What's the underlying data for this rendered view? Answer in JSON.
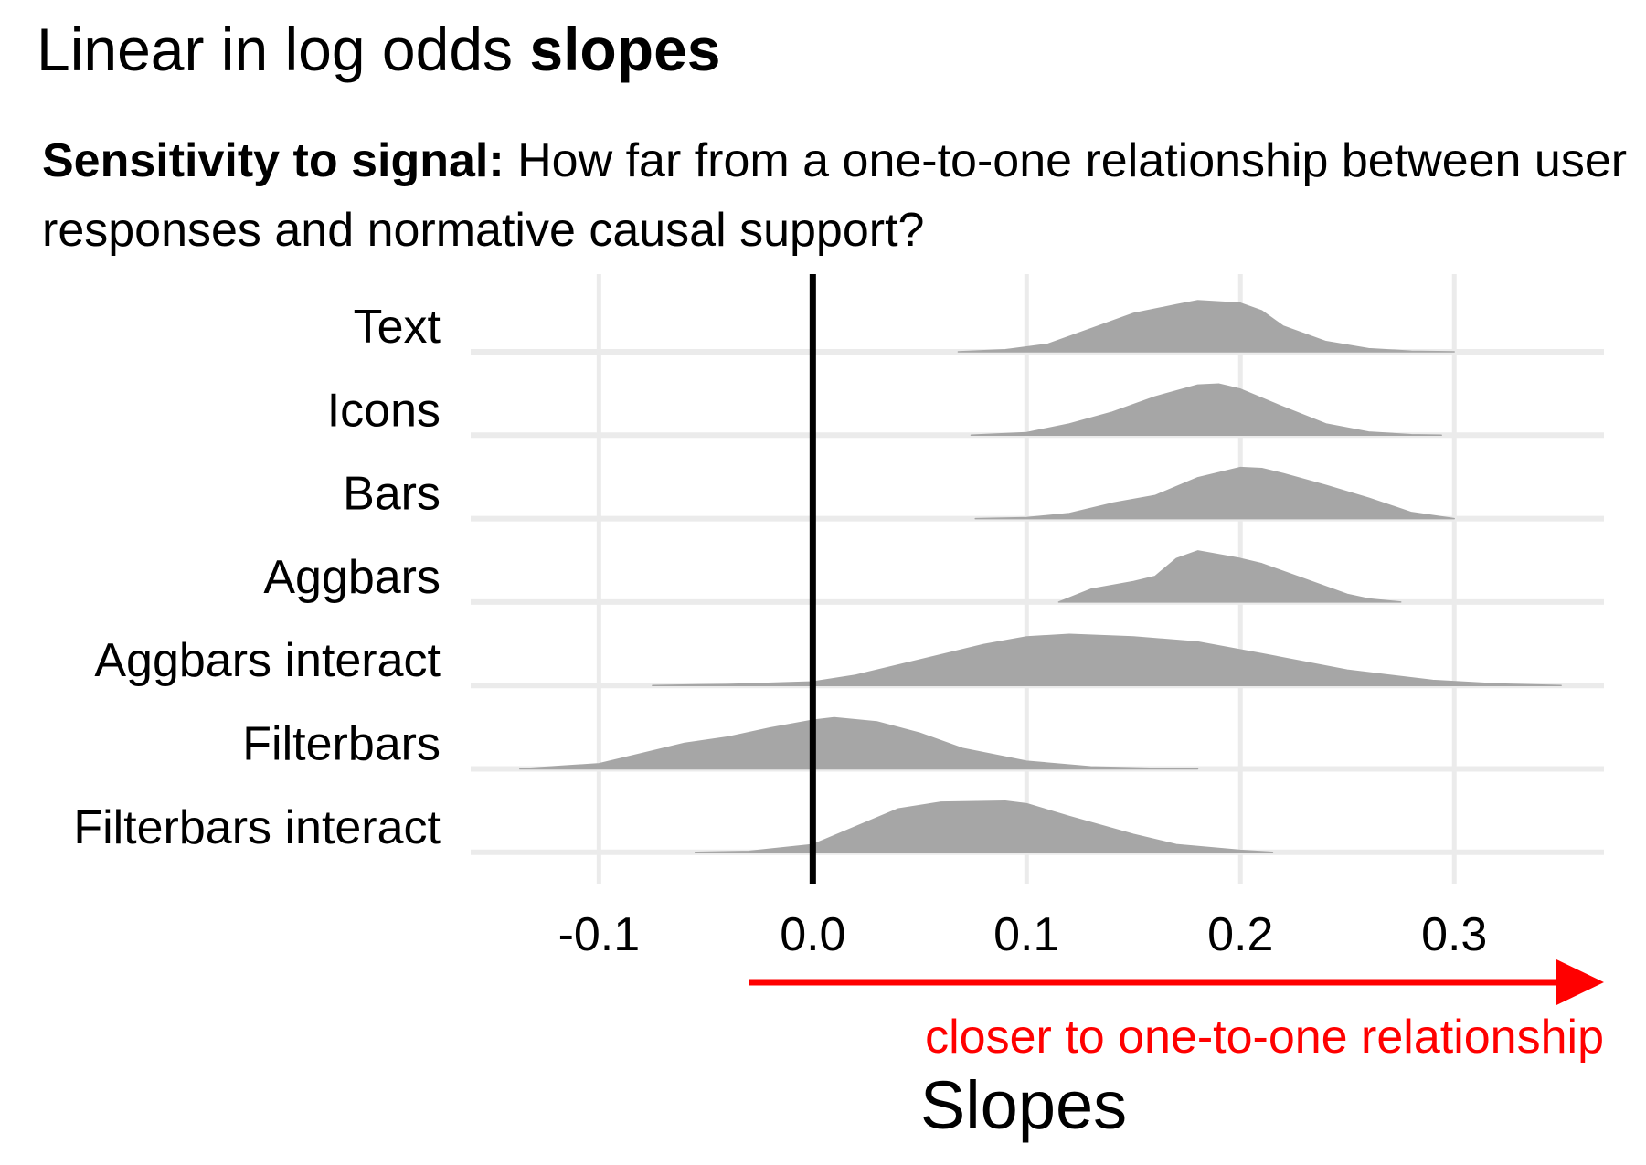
{
  "title": {
    "prefix": "Linear in log odds ",
    "bold": "slopes"
  },
  "subtitle": {
    "bold": "Sensitivity to signal:",
    "text": " How far from a one-to-one relationship between user responses and normative causal support?"
  },
  "chart_data": {
    "type": "density-ridgeline",
    "xlabel": "Slopes",
    "xlim": [
      -0.16,
      0.37
    ],
    "x_ticks": [
      -0.1,
      0.0,
      0.1,
      0.2,
      0.3
    ],
    "x_tick_labels": [
      "-0.1",
      "0.0",
      "0.1",
      "0.2",
      "0.3"
    ],
    "reference_line_x": 0.0,
    "annotation": {
      "text": "closer to one-to-one relationship",
      "color": "#ff0000",
      "arrow_from_x": -0.03,
      "arrow_to_x": 0.37
    },
    "fill_color": "#a6a6a6",
    "grid": true,
    "categories": [
      "Text",
      "Icons",
      "Bars",
      "Aggbars",
      "Aggbars interact",
      "Filterbars",
      "Filterbars interact"
    ],
    "series": [
      {
        "name": "Text",
        "x": [
          0.068,
          0.09,
          0.11,
          0.13,
          0.15,
          0.17,
          0.18,
          0.2,
          0.21,
          0.22,
          0.24,
          0.26,
          0.28,
          0.3
        ],
        "density": [
          0.0,
          0.04,
          0.15,
          0.45,
          0.75,
          0.92,
          1.0,
          0.95,
          0.8,
          0.5,
          0.2,
          0.06,
          0.01,
          0.0
        ]
      },
      {
        "name": "Icons",
        "x": [
          0.074,
          0.1,
          0.12,
          0.14,
          0.16,
          0.18,
          0.19,
          0.2,
          0.22,
          0.24,
          0.26,
          0.28,
          0.294
        ],
        "density": [
          0.0,
          0.05,
          0.22,
          0.45,
          0.75,
          0.98,
          1.0,
          0.9,
          0.55,
          0.22,
          0.06,
          0.01,
          0.0
        ]
      },
      {
        "name": "Bars",
        "x": [
          0.076,
          0.1,
          0.12,
          0.14,
          0.16,
          0.18,
          0.2,
          0.21,
          0.22,
          0.24,
          0.26,
          0.28,
          0.3
        ],
        "density": [
          0.0,
          0.02,
          0.1,
          0.3,
          0.45,
          0.8,
          1.0,
          0.98,
          0.88,
          0.65,
          0.4,
          0.12,
          0.0
        ]
      },
      {
        "name": "Aggbars",
        "x": [
          0.115,
          0.13,
          0.15,
          0.16,
          0.17,
          0.18,
          0.2,
          0.21,
          0.23,
          0.25,
          0.26,
          0.275
        ],
        "density": [
          0.0,
          0.25,
          0.4,
          0.5,
          0.85,
          1.0,
          0.85,
          0.75,
          0.45,
          0.15,
          0.06,
          0.0
        ]
      },
      {
        "name": "Aggbars interact",
        "x": [
          -0.075,
          -0.04,
          0.0,
          0.02,
          0.05,
          0.08,
          0.1,
          0.12,
          0.15,
          0.18,
          0.21,
          0.25,
          0.29,
          0.32,
          0.35
        ],
        "density": [
          0.0,
          0.02,
          0.07,
          0.2,
          0.5,
          0.8,
          0.95,
          1.0,
          0.95,
          0.85,
          0.62,
          0.3,
          0.1,
          0.03,
          0.0
        ]
      },
      {
        "name": "Filterbars",
        "x": [
          -0.137,
          -0.1,
          -0.08,
          -0.06,
          -0.04,
          -0.02,
          0.0,
          0.01,
          0.03,
          0.05,
          0.07,
          0.1,
          0.13,
          0.16,
          0.18
        ],
        "density": [
          0.0,
          0.1,
          0.3,
          0.5,
          0.62,
          0.8,
          0.95,
          1.0,
          0.92,
          0.7,
          0.4,
          0.15,
          0.04,
          0.01,
          0.0
        ]
      },
      {
        "name": "Filterbars interact",
        "x": [
          -0.055,
          -0.03,
          0.0,
          0.02,
          0.04,
          0.06,
          0.09,
          0.1,
          0.12,
          0.15,
          0.17,
          0.2,
          0.215
        ],
        "density": [
          0.0,
          0.02,
          0.15,
          0.5,
          0.85,
          0.98,
          1.0,
          0.95,
          0.7,
          0.35,
          0.15,
          0.04,
          0.0
        ]
      }
    ]
  }
}
